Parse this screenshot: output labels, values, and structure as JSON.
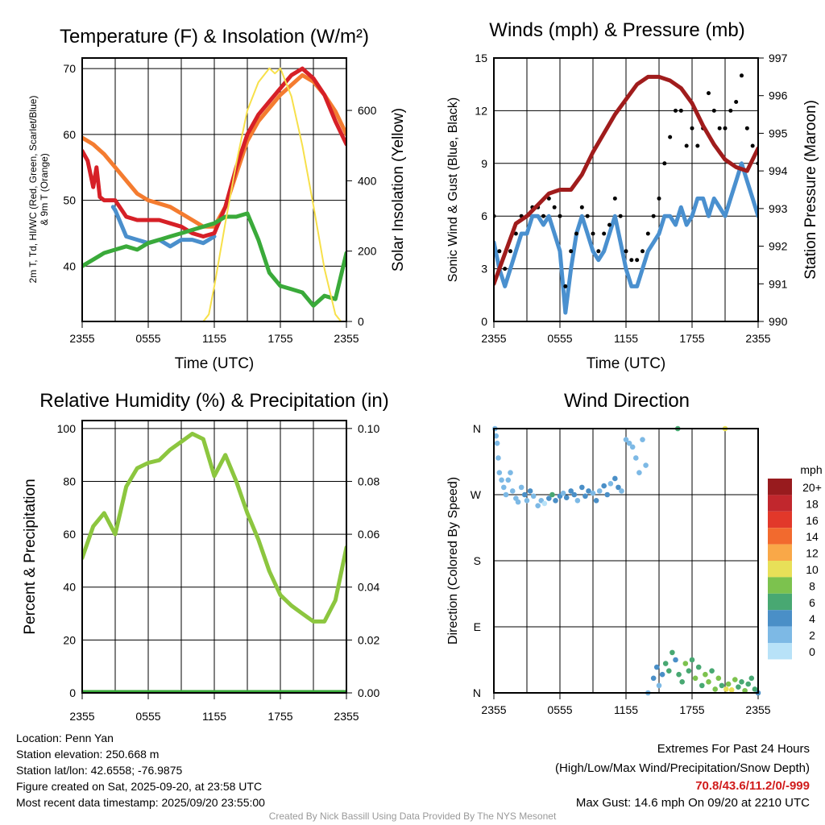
{
  "chart_data": [
    {
      "type": "line",
      "title": "Temperature (F) & Insolation (W/m²)",
      "xlabel": "Time (UTC)",
      "ylabel_lines": [
        "2m T, Td, HI/WC (Red, Green, Scarlet/Blue)",
        "& 9m T (Orange)"
      ],
      "y2label": "Solar Insolation (Yellow)",
      "x_ticks": [
        "2355",
        "0555",
        "1155",
        "1755",
        "2355"
      ],
      "y_ticks": [
        40,
        50,
        60,
        70
      ],
      "y2_ticks": [
        0,
        200,
        400,
        600
      ],
      "ylim": [
        31.6,
        71.6
      ],
      "y2lim": [
        0,
        749
      ],
      "xlim_hours": [
        0,
        24
      ],
      "series": [
        {
          "name": "9m T",
          "color": "#f47c30",
          "axis": "left",
          "x": [
            0,
            1,
            2,
            3,
            4,
            5,
            6,
            7,
            8,
            9,
            10,
            11,
            12,
            13,
            14,
            15,
            16,
            17,
            18,
            19,
            20,
            21,
            22,
            23,
            24
          ],
          "values": [
            59.5,
            58.5,
            57,
            55,
            53,
            51,
            50,
            49.5,
            49,
            48,
            47,
            46,
            46,
            49,
            54,
            59,
            62,
            64,
            66,
            67.5,
            69,
            68,
            66,
            63.5,
            60
          ]
        },
        {
          "name": "WC",
          "color": "#4a8fcc",
          "axis": "left",
          "x": [
            2.8,
            3,
            4,
            5,
            6,
            7,
            8,
            9,
            10,
            11,
            12
          ],
          "values": [
            49,
            48.5,
            44.5,
            44,
            43.5,
            44,
            43,
            44,
            44,
            43.5,
            44.5
          ]
        },
        {
          "name": "2m T",
          "color": "#d62027",
          "axis": "left",
          "x": [
            0,
            0.5,
            1,
            1.3,
            1.6,
            2,
            3,
            4,
            5,
            6,
            7,
            8,
            9,
            10,
            11,
            12,
            13,
            14,
            15,
            16,
            17,
            18,
            19,
            20,
            21,
            22,
            23,
            24
          ],
          "values": [
            57.5,
            56,
            52,
            55,
            50.5,
            50,
            50,
            47.5,
            47,
            47,
            47,
            46.5,
            46,
            45,
            44.5,
            45,
            49,
            55,
            60,
            63,
            65,
            67,
            69,
            70,
            68.5,
            66,
            62,
            58.5
          ]
        },
        {
          "name": "Td",
          "color": "#3aaa3a",
          "axis": "left",
          "x": [
            0,
            1,
            2,
            3,
            4,
            5,
            6,
            7,
            8,
            9,
            10,
            11,
            12,
            13,
            14,
            15,
            16,
            17,
            18,
            19,
            20,
            21,
            22,
            23,
            24
          ],
          "values": [
            40,
            41,
            42,
            42.5,
            43,
            42.5,
            43.5,
            44,
            44.5,
            45,
            45.5,
            46,
            46.5,
            47.5,
            47.5,
            48,
            44,
            39,
            37,
            36.5,
            36,
            34,
            35.5,
            35,
            42
          ]
        },
        {
          "name": "Insolation",
          "color": "#f7e04a",
          "axis": "right",
          "x": [
            0,
            11,
            11.5,
            12,
            13,
            14,
            15,
            16,
            17,
            17.5,
            18,
            19,
            20,
            21,
            22,
            23,
            23.5,
            24
          ],
          "values": [
            0,
            0,
            20,
            100,
            280,
            450,
            600,
            680,
            720,
            705,
            720,
            640,
            500,
            330,
            150,
            20,
            0,
            0
          ]
        }
      ]
    },
    {
      "type": "line",
      "title": "Winds (mph) & Pressure (mb)",
      "xlabel": "Time (UTC)",
      "ylabel": "Sonic Wind & Gust (Blue, Black)",
      "y2label": "Station Pressure (Maroon)",
      "x_ticks": [
        "2355",
        "0555",
        "1155",
        "1755",
        "2355"
      ],
      "y_ticks": [
        0,
        3,
        6,
        9,
        12,
        15
      ],
      "y2_ticks": [
        990,
        991,
        992,
        993,
        994,
        995,
        996,
        997
      ],
      "ylim": [
        0,
        15
      ],
      "y2lim": [
        990,
        997
      ],
      "xlim_hours": [
        0,
        24
      ],
      "series": [
        {
          "name": "Sonic Wind",
          "color": "#4a90cf",
          "axis": "left",
          "x": [
            0,
            0.5,
            1,
            1.5,
            2,
            2.5,
            3,
            3.5,
            4,
            4.5,
            5,
            5.5,
            6,
            6.5,
            7,
            7.5,
            8,
            8.5,
            9,
            9.5,
            10,
            10.5,
            11,
            11.5,
            12,
            12.5,
            13,
            13.5,
            14,
            14.5,
            15,
            15.5,
            16,
            16.5,
            17,
            17.5,
            18,
            18.5,
            19,
            19.5,
            20,
            20.5,
            21,
            21.5,
            22,
            22.5,
            23,
            23.5,
            24
          ],
          "values": [
            4.5,
            3,
            2,
            3,
            4,
            5,
            5,
            6,
            6,
            5.5,
            6,
            5,
            4,
            0.5,
            3,
            5,
            6,
            5,
            4,
            3.5,
            4,
            5,
            6,
            4.5,
            3,
            2,
            2,
            3,
            4,
            4.5,
            5,
            6,
            6,
            5.5,
            6.5,
            5.5,
            6,
            7,
            7,
            6,
            7,
            6.5,
            6,
            7,
            8,
            9,
            8,
            7,
            6
          ]
        },
        {
          "name": "Gust",
          "color": "#000000",
          "axis": "left",
          "x": [
            0,
            0.5,
            1,
            1.5,
            2,
            2.5,
            3,
            3.5,
            4,
            4.5,
            5,
            5.5,
            6,
            6.5,
            7,
            7.5,
            8,
            8.5,
            9,
            9.5,
            10,
            10.5,
            11,
            11.5,
            12,
            12.5,
            13,
            13.5,
            14,
            14.5,
            15,
            15.5,
            16,
            16.5,
            17,
            17.5,
            18,
            18.5,
            19,
            19.5,
            20,
            20.5,
            21,
            21.5,
            22,
            22.5,
            23,
            23.5,
            24
          ],
          "values": [
            6,
            4,
            3,
            4,
            5,
            6,
            6,
            6.5,
            6.5,
            6,
            7,
            6.5,
            6,
            2,
            4,
            5,
            6.5,
            6,
            5,
            4,
            5,
            5.5,
            7,
            6,
            4,
            3.5,
            3.5,
            4,
            5,
            6,
            7,
            9,
            10.5,
            12,
            12,
            10,
            11,
            10,
            11,
            13,
            12,
            11,
            11,
            12,
            12.5,
            14,
            11,
            10,
            9
          ]
        },
        {
          "name": "Pressure",
          "color": "#a01c1c",
          "axis": "right",
          "x": [
            0,
            1,
            2,
            3,
            4,
            5,
            6,
            7,
            8,
            9,
            10,
            11,
            12,
            13,
            14,
            15,
            16,
            17,
            18,
            19,
            20,
            21,
            22,
            23,
            24
          ],
          "values": [
            991.0,
            991.8,
            992.6,
            992.8,
            993.1,
            993.4,
            993.5,
            993.5,
            993.9,
            994.5,
            995.0,
            995.5,
            995.9,
            996.3,
            996.5,
            996.5,
            996.4,
            996.2,
            995.8,
            995.2,
            994.7,
            994.3,
            994.1,
            994.0,
            994.6
          ]
        }
      ]
    },
    {
      "type": "line",
      "title": "Relative Humidity (%) & Precipitation (in)",
      "ylabel": "Percent & Precipitation",
      "x_ticks": [
        "2355",
        "0555",
        "1155",
        "1755",
        "2355"
      ],
      "y_ticks": [
        0,
        20,
        40,
        60,
        80,
        100
      ],
      "y2_ticks": [
        "0.00",
        "0.02",
        "0.04",
        "0.06",
        "0.08",
        "0.10"
      ],
      "ylim": [
        0,
        103
      ],
      "y2lim": [
        0,
        0.103
      ],
      "xlim_hours": [
        0,
        24
      ],
      "series": [
        {
          "name": "Relative Humidity",
          "color": "#8cc63f",
          "axis": "left",
          "x": [
            0,
            1,
            2,
            3,
            4,
            5,
            6,
            7,
            8,
            9,
            10,
            11,
            12,
            13,
            14,
            15,
            16,
            17,
            18,
            19,
            20,
            21,
            22,
            23,
            24
          ],
          "values": [
            51,
            63,
            68,
            60,
            78,
            85,
            87,
            88,
            92,
            95,
            98,
            96,
            82,
            90,
            80,
            68,
            58,
            46,
            37,
            33,
            30,
            27,
            27,
            35,
            55
          ]
        },
        {
          "name": "Precipitation",
          "color": "#3aaa3a",
          "axis": "right",
          "x": [
            0,
            24
          ],
          "values": [
            0,
            0
          ]
        }
      ]
    },
    {
      "type": "scatter",
      "title": "Wind Direction",
      "ylabel": "Direction (Colored By Speed)",
      "x_ticks": [
        "2355",
        "0555",
        "1155",
        "1755",
        "2355"
      ],
      "y_ticks": [
        "N",
        "E",
        "S",
        "W",
        "N"
      ],
      "ylim_degrees": [
        0,
        360
      ],
      "xlim_hours": [
        0,
        24
      ],
      "colorbar": {
        "title": "mph",
        "labels": [
          "20+",
          "18",
          "16",
          "14",
          "12",
          "10",
          "8",
          "6",
          "4",
          "2",
          "0"
        ],
        "colors": [
          "#981b1e",
          "#c1272d",
          "#e2382a",
          "#f26a2e",
          "#f9a848",
          "#e8e058",
          "#7cc24e",
          "#48a872",
          "#4a8fc7",
          "#7db9e5",
          "#b8e2f8"
        ]
      },
      "points": [
        [
          0.1,
          360,
          2
        ],
        [
          0.2,
          350,
          2
        ],
        [
          0.3,
          340,
          2
        ],
        [
          0.4,
          320,
          3
        ],
        [
          0.5,
          300,
          2
        ],
        [
          0.7,
          290,
          3
        ],
        [
          0.9,
          280,
          2
        ],
        [
          1.1,
          270,
          2
        ],
        [
          1.3,
          290,
          3
        ],
        [
          1.5,
          300,
          2
        ],
        [
          1.7,
          275,
          3
        ],
        [
          2,
          265,
          2
        ],
        [
          2.2,
          260,
          2
        ],
        [
          2.5,
          280,
          3
        ],
        [
          2.8,
          270,
          4
        ],
        [
          3,
          262,
          3
        ],
        [
          3.3,
          275,
          4
        ],
        [
          3.6,
          268,
          2
        ],
        [
          4,
          255,
          3
        ],
        [
          4.3,
          262,
          2
        ],
        [
          4.6,
          258,
          1
        ],
        [
          5,
          265,
          5
        ],
        [
          5.3,
          270,
          6
        ],
        [
          5.6,
          262,
          4
        ],
        [
          6,
          268,
          5
        ],
        [
          6.3,
          272,
          3
        ],
        [
          6.6,
          266,
          4
        ],
        [
          7,
          275,
          4
        ],
        [
          7.3,
          270,
          4
        ],
        [
          7.6,
          262,
          3
        ],
        [
          8,
          280,
          4
        ],
        [
          8.3,
          268,
          5
        ],
        [
          8.6,
          275,
          4
        ],
        [
          9,
          272,
          3
        ],
        [
          9.3,
          262,
          4
        ],
        [
          9.6,
          275,
          3
        ],
        [
          10,
          282,
          4
        ],
        [
          10.3,
          270,
          4
        ],
        [
          10.6,
          285,
          3
        ],
        [
          11,
          292,
          4
        ],
        [
          11.3,
          280,
          4
        ],
        [
          11.6,
          275,
          3
        ],
        [
          12,
          345,
          2
        ],
        [
          12.3,
          340,
          2
        ],
        [
          12.6,
          335,
          2
        ],
        [
          12.9,
          320,
          2
        ],
        [
          13.2,
          300,
          2
        ],
        [
          13.5,
          345,
          2
        ],
        [
          13.8,
          310,
          2
        ],
        [
          14,
          0,
          2
        ],
        [
          14.5,
          20,
          4
        ],
        [
          14.8,
          35,
          4
        ],
        [
          15,
          10,
          3
        ],
        [
          15.3,
          25,
          4
        ],
        [
          15.6,
          40,
          6
        ],
        [
          15.9,
          30,
          6
        ],
        [
          16.2,
          55,
          6
        ],
        [
          16.5,
          45,
          5
        ],
        [
          16.7,
          360,
          7
        ],
        [
          16.8,
          25,
          7
        ],
        [
          17.1,
          15,
          6
        ],
        [
          17.4,
          40,
          8
        ],
        [
          17.7,
          30,
          7
        ],
        [
          18,
          45,
          6
        ],
        [
          18.3,
          20,
          8
        ],
        [
          18.6,
          35,
          7
        ],
        [
          18.9,
          10,
          6
        ],
        [
          19.2,
          25,
          9
        ],
        [
          19.5,
          15,
          8
        ],
        [
          19.8,
          30,
          7
        ],
        [
          20.1,
          5,
          9
        ],
        [
          20.4,
          20,
          8
        ],
        [
          20.7,
          10,
          6
        ],
        [
          21,
          360,
          10
        ],
        [
          21.1,
          5,
          10
        ],
        [
          21.3,
          12,
          9
        ],
        [
          21.6,
          4,
          10
        ],
        [
          21.9,
          18,
          8
        ],
        [
          22.2,
          8,
          7
        ],
        [
          22.5,
          15,
          7
        ],
        [
          22.8,
          3,
          8
        ],
        [
          23.1,
          12,
          6
        ],
        [
          23.4,
          20,
          7
        ],
        [
          23.7,
          5,
          6
        ],
        [
          24,
          0,
          5
        ]
      ]
    }
  ],
  "info": {
    "location": "Location: Penn Yan",
    "elevation": "Station elevation: 250.668 m",
    "latlon": "Station lat/lon: 42.6558; -76.9875",
    "created": "Figure created on Sat, 2025-09-20, at 23:58 UTC",
    "recent": "Most recent data timestamp: 2025/09/20 23:55:00"
  },
  "extremes": {
    "title": "Extremes For Past 24 Hours",
    "subtitle": "(High/Low/Max Wind/Precipitation/Snow Depth)",
    "values": "70.8/43.6/11.2/0/-999",
    "values_color": "#d01c1c",
    "max_gust": "Max Gust: 14.6 mph On 09/20 at 2210 UTC"
  },
  "credit": "Created By Nick Bassill Using Data Provided By The NYS Mesonet"
}
